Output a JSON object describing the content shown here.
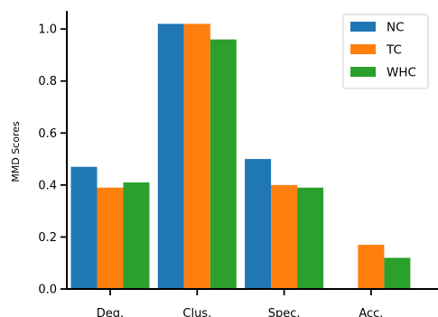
{
  "chart_data": {
    "type": "bar",
    "categories": [
      "Deg.",
      "Clus.",
      "Spec.",
      "Acc."
    ],
    "series": [
      {
        "name": "NC",
        "color": "#1f77b4",
        "values": [
          0.47,
          1.02,
          0.5,
          0.0
        ]
      },
      {
        "name": "TC",
        "color": "#ff7f0e",
        "values": [
          0.39,
          1.02,
          0.4,
          0.17
        ]
      },
      {
        "name": "WHC",
        "color": "#2ca02c",
        "values": [
          0.41,
          0.96,
          0.39,
          0.12
        ]
      }
    ],
    "title": "",
    "xlabel": "",
    "ylabel": "MMD Scores",
    "ylim": [
      0,
      1.07
    ],
    "yticks": [
      "0.0",
      "0.2",
      "0.4",
      "0.6",
      "0.8",
      "1.0"
    ],
    "legend_position": "top-right",
    "grid": false
  }
}
